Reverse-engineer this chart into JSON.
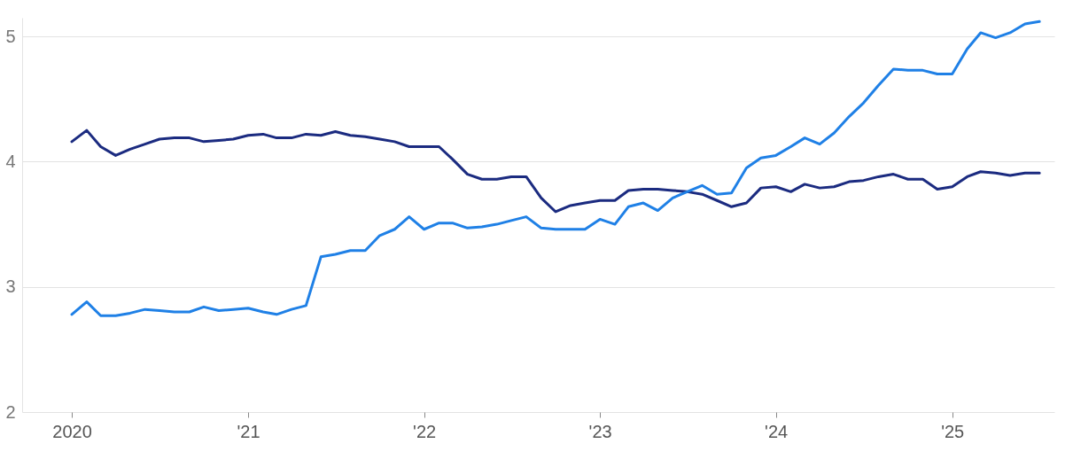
{
  "chart_data": {
    "type": "line",
    "x": [
      "2020-01",
      "2020-02",
      "2020-03",
      "2020-04",
      "2020-05",
      "2020-06",
      "2020-07",
      "2020-08",
      "2020-09",
      "2020-10",
      "2020-11",
      "2020-12",
      "2021-01",
      "2021-02",
      "2021-03",
      "2021-04",
      "2021-05",
      "2021-06",
      "2021-07",
      "2021-08",
      "2021-09",
      "2021-10",
      "2021-11",
      "2021-12",
      "2022-01",
      "2022-02",
      "2022-03",
      "2022-04",
      "2022-05",
      "2022-06",
      "2022-07",
      "2022-08",
      "2022-09",
      "2022-10",
      "2022-11",
      "2022-12",
      "2023-01",
      "2023-02",
      "2023-03",
      "2023-04",
      "2023-05",
      "2023-06",
      "2023-07",
      "2023-08",
      "2023-09",
      "2023-10",
      "2023-11",
      "2023-12",
      "2024-01",
      "2024-02",
      "2024-03",
      "2024-04",
      "2024-05",
      "2024-06",
      "2024-07",
      "2024-08",
      "2024-09",
      "2024-10",
      "2024-11",
      "2024-12",
      "2025-01",
      "2025-02",
      "2025-03",
      "2025-04",
      "2025-05",
      "2025-06",
      "2025-07"
    ],
    "series": [
      {
        "color": "#1b2b80",
        "values": [
          4.16,
          4.25,
          4.12,
          4.05,
          4.1,
          4.14,
          4.18,
          4.19,
          4.19,
          4.16,
          4.17,
          4.18,
          4.21,
          4.22,
          4.19,
          4.19,
          4.22,
          4.21,
          4.24,
          4.21,
          4.2,
          4.18,
          4.16,
          4.12,
          4.12,
          4.12,
          4.02,
          3.9,
          3.86,
          3.86,
          3.88,
          3.88,
          3.71,
          3.6,
          3.65,
          3.67,
          3.69,
          3.69,
          3.77,
          3.78,
          3.78,
          3.77,
          3.76,
          3.74,
          3.69,
          3.64,
          3.67,
          3.79,
          3.8,
          3.76,
          3.82,
          3.79,
          3.8,
          3.84,
          3.85,
          3.88,
          3.9,
          3.86,
          3.86,
          3.78,
          3.8,
          3.88,
          3.92,
          3.91,
          3.89,
          3.91,
          3.91
        ]
      },
      {
        "color": "#1f80e6",
        "values": [
          2.78,
          2.88,
          2.77,
          2.77,
          2.79,
          2.82,
          2.81,
          2.8,
          2.8,
          2.84,
          2.81,
          2.82,
          2.83,
          2.8,
          2.78,
          2.82,
          2.85,
          3.24,
          3.26,
          3.29,
          3.29,
          3.41,
          3.46,
          3.56,
          3.46,
          3.51,
          3.51,
          3.47,
          3.48,
          3.5,
          3.53,
          3.56,
          3.47,
          3.46,
          3.46,
          3.46,
          3.54,
          3.5,
          3.64,
          3.67,
          3.61,
          3.71,
          3.76,
          3.81,
          3.74,
          3.75,
          3.95,
          4.03,
          4.05,
          4.12,
          4.19,
          4.14,
          4.23,
          4.36,
          4.47,
          4.61,
          4.74,
          4.73,
          4.73,
          4.7,
          4.7,
          4.9,
          5.03,
          4.99,
          5.03,
          5.1,
          5.12
        ]
      }
    ],
    "xlim": [
      "2019-09-20",
      "2025-08-01"
    ],
    "xticks": [
      {
        "value": "2020-01",
        "label": "2020"
      },
      {
        "value": "2021-01",
        "label": "'21"
      },
      {
        "value": "2022-01",
        "label": "'22"
      },
      {
        "value": "2023-01",
        "label": "'23"
      },
      {
        "value": "2024-01",
        "label": "'24"
      },
      {
        "value": "2025-01",
        "label": "'25"
      }
    ],
    "ylim": [
      2,
      5.15
    ],
    "yticks": [
      2,
      3,
      4,
      5
    ],
    "grid": "y",
    "line_style": "solid",
    "marker": "none"
  }
}
